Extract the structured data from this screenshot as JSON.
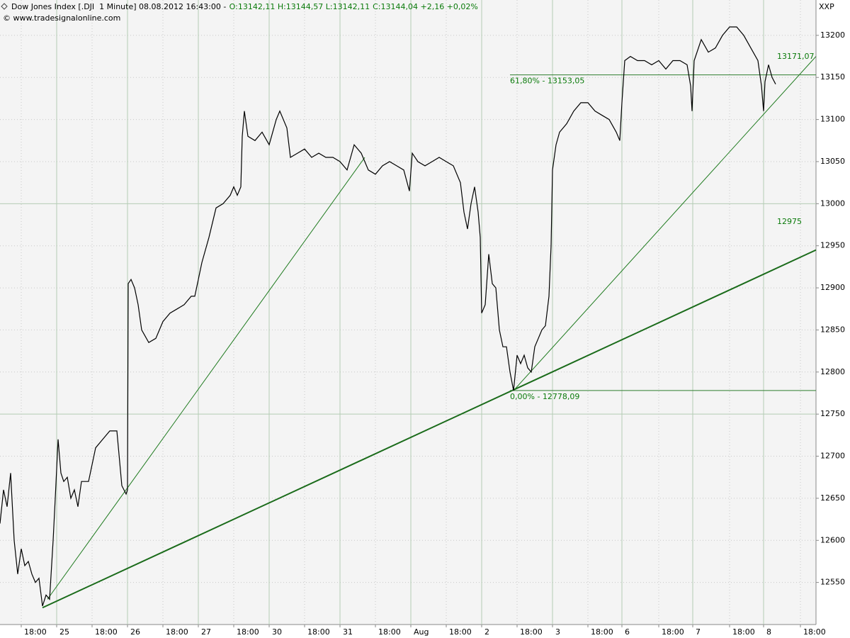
{
  "chart_data": {
    "type": "line",
    "title": "Dow Jones Index [.DJI  1 Minute] 08.08.2012 16:43:00 -",
    "ohlc": "O:13142,11 H:13144,57 L:13142,11",
    "change": "C:13144,04 +2,16 +0,02%",
    "source": "© www.tradesignalonline.com",
    "axis_unit": "XXP",
    "color": "#000000",
    "x": [
      0.0,
      0.05,
      0.1,
      0.15,
      0.2,
      0.25,
      0.3,
      0.35,
      0.4,
      0.45,
      0.5,
      0.55,
      0.6,
      0.65,
      0.7,
      0.75,
      0.78,
      0.82,
      0.86,
      0.9,
      0.95,
      1.0,
      1.05,
      1.1,
      1.15,
      1.25,
      1.35,
      1.45,
      1.55,
      1.65,
      1.72,
      1.78,
      1.8,
      1.81,
      1.85,
      1.9,
      1.95,
      2.0,
      2.1,
      2.2,
      2.3,
      2.4,
      2.5,
      2.6,
      2.7,
      2.75,
      2.8,
      2.85,
      2.95,
      3.05,
      3.15,
      3.25,
      3.3,
      3.35,
      3.4,
      3.42,
      3.45,
      3.5,
      3.6,
      3.7,
      3.8,
      3.9,
      3.95,
      4.05,
      4.1,
      4.2,
      4.3,
      4.4,
      4.5,
      4.6,
      4.7,
      4.8,
      4.9,
      5.0,
      5.1,
      5.2,
      5.3,
      5.4,
      5.5,
      5.6,
      5.7,
      5.78,
      5.82,
      5.9,
      6.0,
      6.1,
      6.2,
      6.3,
      6.4,
      6.5,
      6.55,
      6.6,
      6.65,
      6.7,
      6.75,
      6.78,
      6.8,
      6.85,
      6.9,
      6.95,
      7.0,
      7.05,
      7.1,
      7.15,
      7.2,
      7.25,
      7.3,
      7.35,
      7.4,
      7.45,
      7.5,
      7.55,
      7.6,
      7.65,
      7.7,
      7.75,
      7.78,
      7.8,
      7.85,
      7.9,
      7.95,
      8.0,
      8.1,
      8.2,
      8.3,
      8.4,
      8.5,
      8.6,
      8.7,
      8.75,
      8.78,
      8.82,
      8.9,
      9.0,
      9.1,
      9.2,
      9.3,
      9.4,
      9.5,
      9.6,
      9.7,
      9.75,
      9.77,
      9.8,
      9.9,
      10.0,
      10.1,
      10.2,
      10.3,
      10.4,
      10.5,
      10.6,
      10.7,
      10.75,
      10.78,
      10.8,
      10.85,
      10.9,
      10.95
    ],
    "values": [
      12620,
      12660,
      12640,
      12680,
      12600,
      12560,
      12590,
      12570,
      12575,
      12560,
      12550,
      12555,
      12522,
      12535,
      12530,
      12600,
      12650,
      12720,
      12680,
      12670,
      12675,
      12650,
      12660,
      12640,
      12670,
      12670,
      12710,
      12720,
      12730,
      12730,
      12665,
      12655,
      12660,
      12905,
      12910,
      12900,
      12880,
      12850,
      12835,
      12840,
      12860,
      12870,
      12875,
      12880,
      12890,
      12890,
      12910,
      12930,
      12960,
      12995,
      13000,
      13010,
      13020,
      13010,
      13020,
      13080,
      13110,
      13080,
      13075,
      13085,
      13070,
      13100,
      13110,
      13090,
      13055,
      13060,
      13065,
      13055,
      13060,
      13055,
      13055,
      13050,
      13040,
      13070,
      13060,
      13040,
      13035,
      13045,
      13050,
      13045,
      13040,
      13015,
      13060,
      13050,
      13045,
      13050,
      13055,
      13050,
      13045,
      13025,
      12990,
      12970,
      13000,
      13020,
      12990,
      12960,
      12870,
      12880,
      12940,
      12905,
      12900,
      12850,
      12830,
      12830,
      12800,
      12778,
      12820,
      12810,
      12820,
      12805,
      12800,
      12830,
      12840,
      12850,
      12855,
      12890,
      12950,
      13040,
      13070,
      13085,
      13090,
      13095,
      13110,
      13120,
      13120,
      13110,
      13105,
      13100,
      13085,
      13075,
      13120,
      13170,
      13175,
      13170,
      13170,
      13165,
      13170,
      13160,
      13170,
      13170,
      13165,
      13140,
      13110,
      13170,
      13195,
      13180,
      13185,
      13200,
      13210,
      13210,
      13200,
      13185,
      13170,
      13140,
      13110,
      13145,
      13165,
      13150,
      13142
    ],
    "xlim": [
      0,
      11.52
    ],
    "ylim": [
      12500,
      13242
    ],
    "xticks": [
      {
        "value": 0.3,
        "label": "18:00"
      },
      {
        "value": 0.8,
        "label": "25"
      },
      {
        "value": 1.3,
        "label": "18:00"
      },
      {
        "value": 1.8,
        "label": "26"
      },
      {
        "value": 2.3,
        "label": "18:00"
      },
      {
        "value": 2.8,
        "label": "27"
      },
      {
        "value": 3.3,
        "label": "18:00"
      },
      {
        "value": 3.8,
        "label": "30"
      },
      {
        "value": 4.3,
        "label": "18:00"
      },
      {
        "value": 4.8,
        "label": "31"
      },
      {
        "value": 5.3,
        "label": "18:00"
      },
      {
        "value": 5.8,
        "label": "Aug"
      },
      {
        "value": 6.3,
        "label": "18:00"
      },
      {
        "value": 6.8,
        "label": "2"
      },
      {
        "value": 7.3,
        "label": "18:00"
      },
      {
        "value": 7.8,
        "label": "3"
      },
      {
        "value": 8.3,
        "label": "18:00"
      },
      {
        "value": 8.78,
        "label": "6"
      },
      {
        "value": 9.3,
        "label": "18:00"
      },
      {
        "value": 9.78,
        "label": "7"
      },
      {
        "value": 10.3,
        "label": "18:00"
      },
      {
        "value": 10.78,
        "label": "8"
      },
      {
        "value": 11.3,
        "label": "18:00"
      }
    ],
    "yticks": [
      12550,
      12600,
      12650,
      12700,
      12750,
      12800,
      12850,
      12900,
      12950,
      13000,
      13050,
      13100,
      13150,
      13200
    ],
    "grid": true,
    "trendlines": [
      {
        "x": [
          0.67,
          5.15
        ],
        "y": [
          12530,
          13055
        ],
        "color": "#1e7a1e",
        "width": 1
      },
      {
        "x": [
          0.6,
          11.52
        ],
        "y": [
          12520,
          12945
        ],
        "color": "#1a6b1a",
        "width": 2
      },
      {
        "x": [
          7.25,
          11.52
        ],
        "y": [
          12778,
          13175
        ],
        "color": "#1e7a1e",
        "width": 1
      }
    ],
    "levels": [
      {
        "value": 13153.05,
        "x0": 7.2,
        "label": "61,80% - 13153,05"
      },
      {
        "value": 12778.09,
        "x0": 7.2,
        "label": "0,00% - 12778,09"
      }
    ],
    "annotations": [
      {
        "text": "13171,07",
        "x": 10.95,
        "y": 13171.07
      },
      {
        "text": "12975",
        "x": 10.95,
        "y": 12975
      }
    ]
  }
}
